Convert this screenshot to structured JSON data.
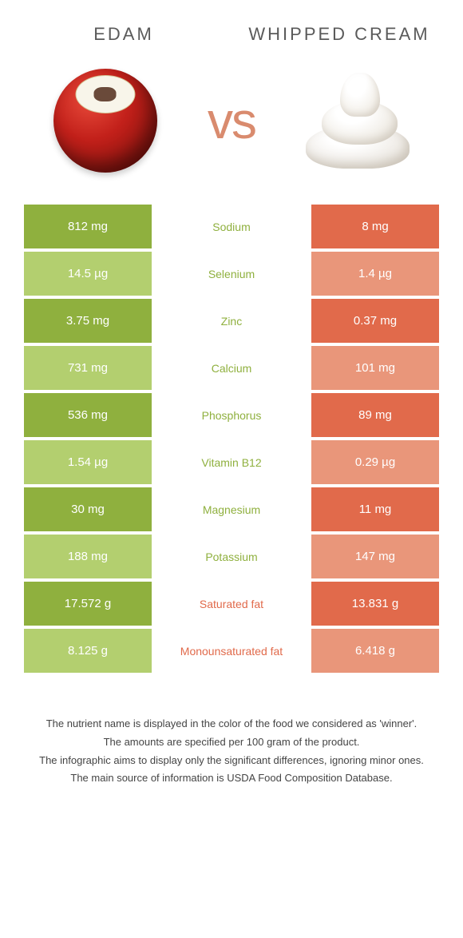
{
  "colors": {
    "green": "#8fb03e",
    "light_green": "#b3cf6f",
    "orange": "#e16a4b",
    "light_orange": "#e9967a",
    "white_text": "#ffffff"
  },
  "header": {
    "left": "Edam",
    "right": "Whipped cream",
    "vs": "vs"
  },
  "nutrients": [
    {
      "label": "Sodium",
      "left": "812 mg",
      "right": "8 mg",
      "winner": "left"
    },
    {
      "label": "Selenium",
      "left": "14.5 µg",
      "right": "1.4 µg",
      "winner": "left"
    },
    {
      "label": "Zinc",
      "left": "3.75 mg",
      "right": "0.37 mg",
      "winner": "left"
    },
    {
      "label": "Calcium",
      "left": "731 mg",
      "right": "101 mg",
      "winner": "left"
    },
    {
      "label": "Phosphorus",
      "left": "536 mg",
      "right": "89 mg",
      "winner": "left"
    },
    {
      "label": "Vitamin B12",
      "left": "1.54 µg",
      "right": "0.29 µg",
      "winner": "left"
    },
    {
      "label": "Magnesium",
      "left": "30 mg",
      "right": "11 mg",
      "winner": "left"
    },
    {
      "label": "Potassium",
      "left": "188 mg",
      "right": "147 mg",
      "winner": "left"
    },
    {
      "label": "Saturated fat",
      "left": "17.572 g",
      "right": "13.831 g",
      "winner": "right"
    },
    {
      "label": "Monounsaturated fat",
      "left": "8.125 g",
      "right": "6.418 g",
      "winner": "right"
    }
  ],
  "footnotes": [
    "The nutrient name is displayed in the color of the food we considered as 'winner'.",
    "The amounts are specified per 100 gram of the product.",
    "The infographic aims to display only the significant differences, ignoring minor ones.",
    "The main source of information is USDA Food Composition Database."
  ]
}
